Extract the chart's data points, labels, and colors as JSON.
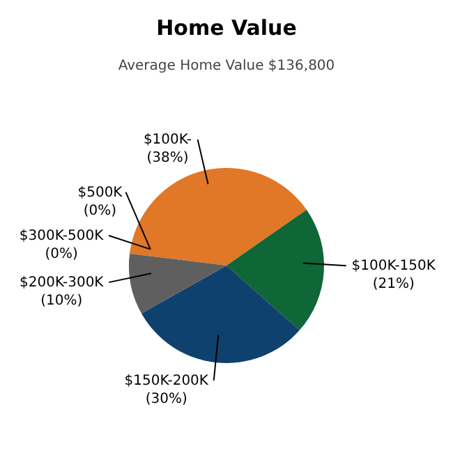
{
  "chart_data": {
    "type": "pie",
    "title": "Home Value",
    "subtitle": "Average Home Value  $136,800",
    "categories": [
      "$100K-",
      "$100K-150K",
      "$150K-200K",
      "$200K-300K",
      "$300K-500K",
      "$500K"
    ],
    "values": [
      38,
      21,
      30,
      10,
      0,
      0
    ],
    "value_labels": [
      "(38%)",
      "(21%)",
      "(30%)",
      "(10%)",
      "(0%)",
      "(0%)"
    ],
    "colors": [
      "#e07828",
      "#0f6637",
      "#0f416e",
      "#5f5f5f",
      "#8a8a8a",
      "#b0b0b0"
    ]
  }
}
